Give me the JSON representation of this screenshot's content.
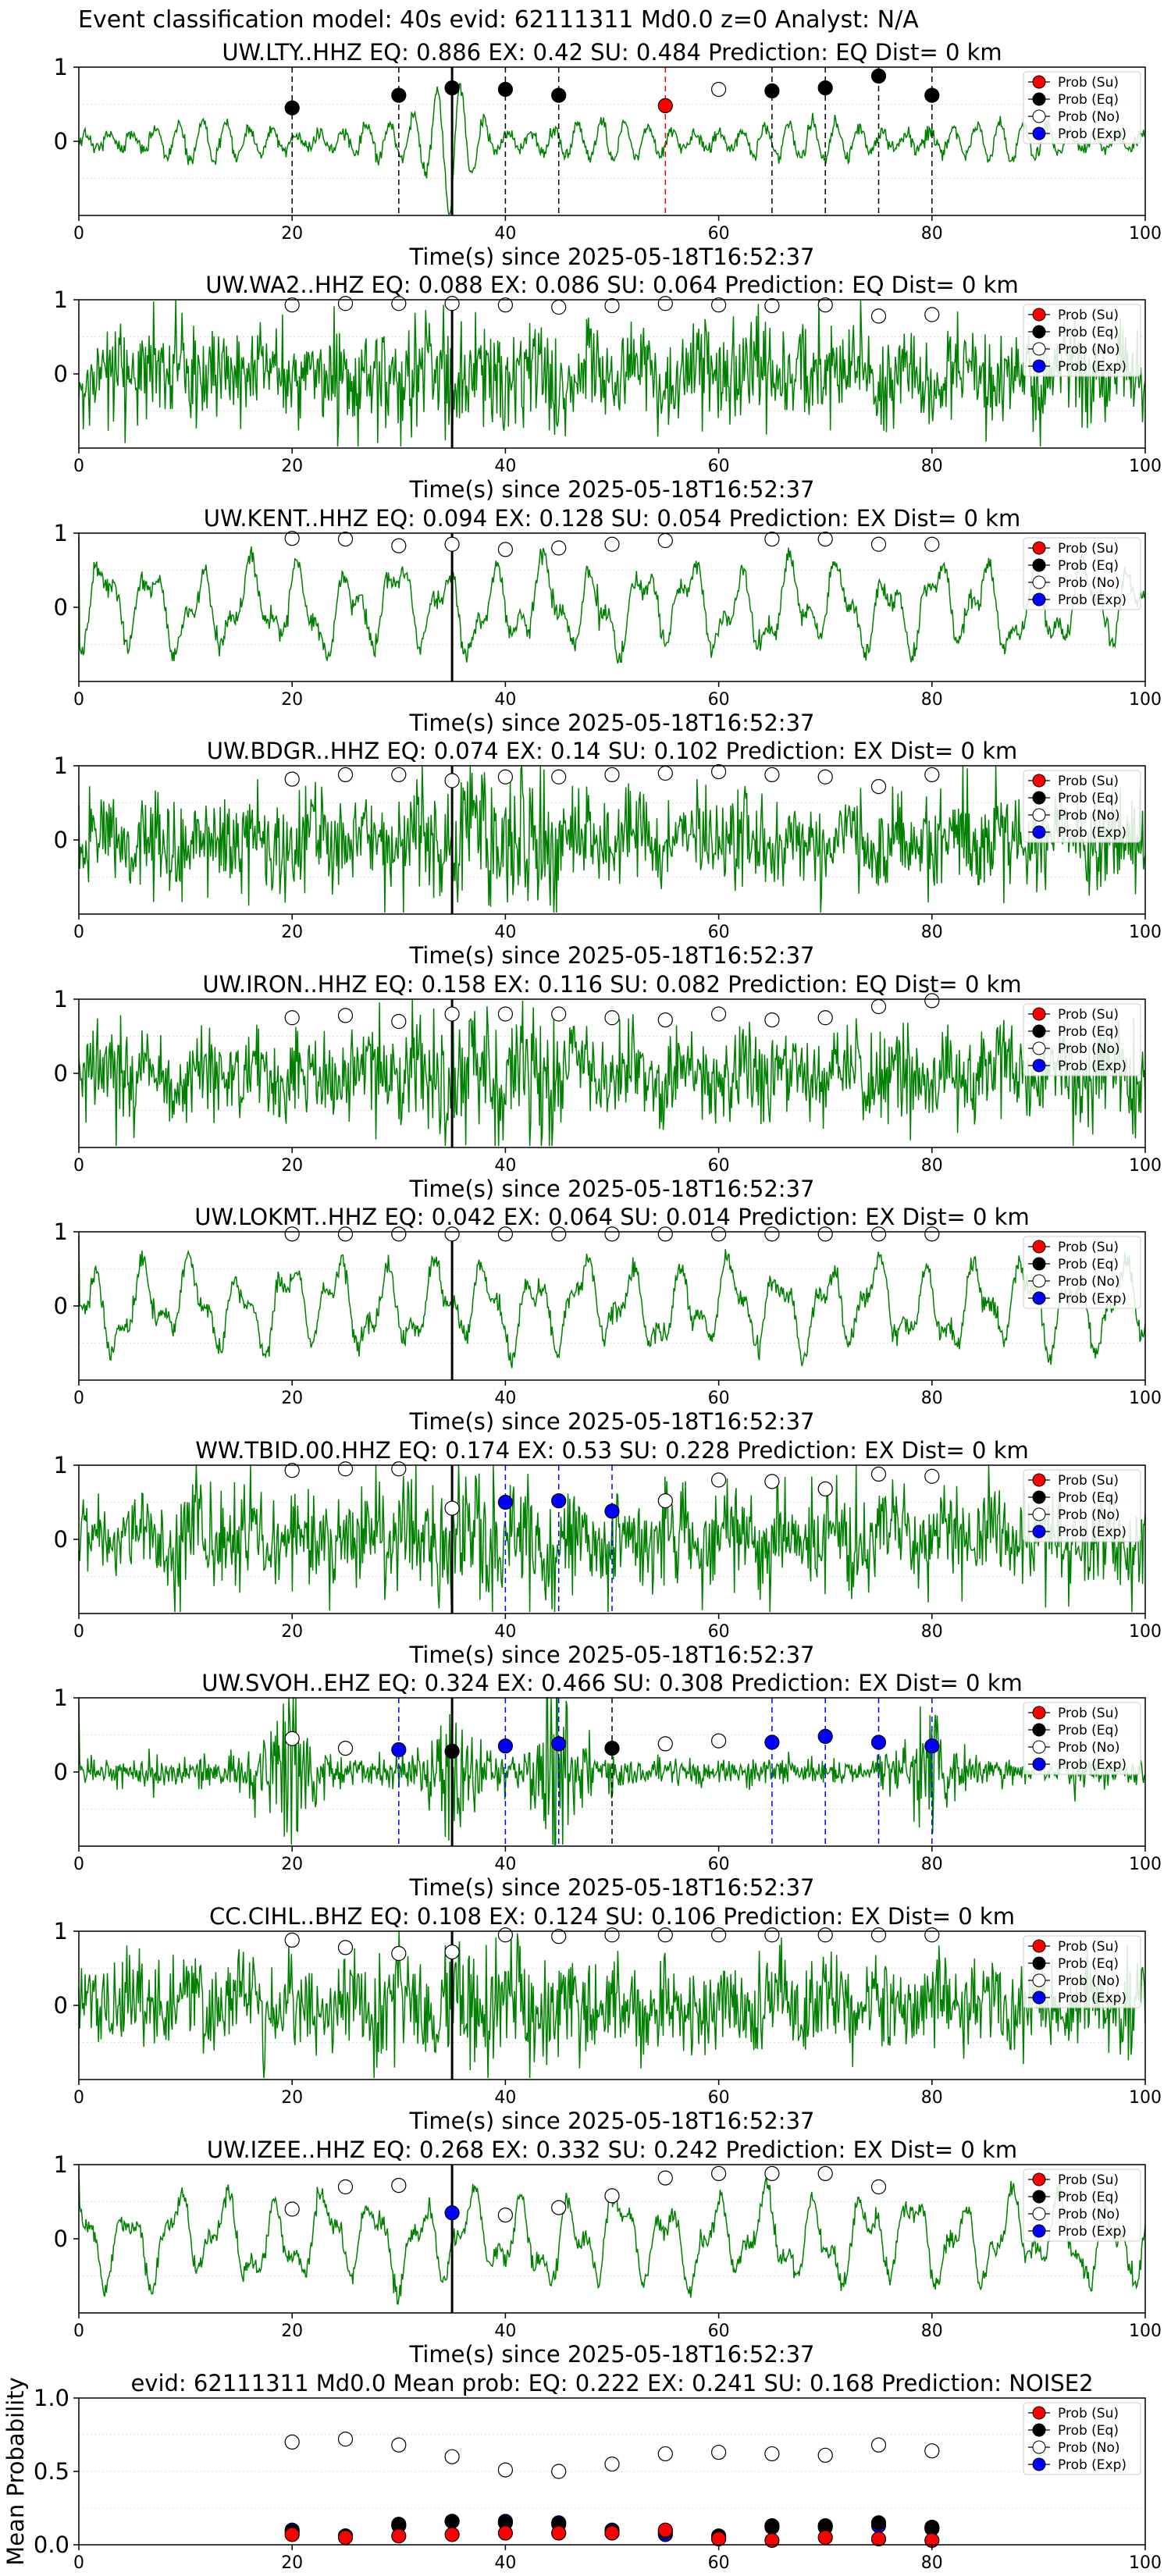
{
  "figure": {
    "title": "Event classification model: 40s evid: 62111311 Md0.0 z=0 Analyst: N/A"
  },
  "legend_labels": [
    "Prob (Su)",
    "Prob (Eq)",
    "Prob (No)",
    "Prob (Exp)"
  ],
  "colors": {
    "waveform": "#008000",
    "su": "#ff0000",
    "eq": "#000000",
    "no": "#ffffff",
    "exp": "#0000ff",
    "reference_line": "#000000"
  },
  "chart_data": [
    {
      "type": "line",
      "title": "UW.LTY..HHZ   EQ: 0.886  EX: 0.42  SU: 0.484   Prediction: EQ    Dist= 0 km",
      "xlabel": "Time(s) since 2025-05-18T16:52:37",
      "xlim": [
        0,
        100
      ],
      "ylim": [
        -1,
        1
      ],
      "x_ticks": [
        0,
        20,
        40,
        60,
        80,
        100
      ],
      "y_ticks": [
        0,
        1
      ],
      "grid": true,
      "legend": "right",
      "reference_line_x": 35,
      "waveform_character": "impulsive",
      "points": {
        "su": [
          [
            55,
            0.48
          ]
        ],
        "eq": [
          [
            20,
            0.45
          ],
          [
            30,
            0.62
          ],
          [
            35,
            0.72
          ],
          [
            40,
            0.7
          ],
          [
            45,
            0.62
          ],
          [
            65,
            0.68
          ],
          [
            70,
            0.72
          ],
          [
            75,
            0.88
          ],
          [
            80,
            0.62
          ]
        ],
        "no": [
          [
            60,
            0.7
          ]
        ],
        "exp": []
      },
      "dashed_lines": [
        {
          "x": 20,
          "color": "eq"
        },
        {
          "x": 30,
          "color": "eq"
        },
        {
          "x": 35,
          "color": "eq"
        },
        {
          "x": 40,
          "color": "eq"
        },
        {
          "x": 45,
          "color": "eq"
        },
        {
          "x": 55,
          "color": "su"
        },
        {
          "x": 65,
          "color": "eq"
        },
        {
          "x": 70,
          "color": "eq"
        },
        {
          "x": 75,
          "color": "eq"
        },
        {
          "x": 80,
          "color": "eq"
        }
      ]
    },
    {
      "type": "line",
      "title": "UW.WA2..HHZ   EQ: 0.088  EX: 0.086  SU: 0.064   Prediction: EQ    Dist= 0 km",
      "xlabel": "Time(s) since 2025-05-18T16:52:37",
      "xlim": [
        0,
        100
      ],
      "ylim": [
        -1,
        1
      ],
      "x_ticks": [
        0,
        20,
        40,
        60,
        80,
        100
      ],
      "y_ticks": [
        0,
        1
      ],
      "grid": true,
      "legend": "right",
      "reference_line_x": 35,
      "waveform_character": "dense",
      "points": {
        "su": [],
        "eq": [],
        "no": [
          [
            20,
            0.93
          ],
          [
            25,
            0.95
          ],
          [
            30,
            0.95
          ],
          [
            35,
            0.95
          ],
          [
            40,
            0.93
          ],
          [
            45,
            0.9
          ],
          [
            50,
            0.92
          ],
          [
            55,
            0.95
          ],
          [
            60,
            0.93
          ],
          [
            65,
            0.92
          ],
          [
            70,
            0.93
          ],
          [
            75,
            0.78
          ],
          [
            80,
            0.8
          ]
        ],
        "exp": []
      },
      "dashed_lines": []
    },
    {
      "type": "line",
      "title": "UW.KENT..HHZ   EQ: 0.094  EX: 0.128  SU: 0.054   Prediction: EX    Dist= 0 km",
      "xlabel": "Time(s) since 2025-05-18T16:52:37",
      "xlim": [
        0,
        100
      ],
      "ylim": [
        -1,
        1
      ],
      "x_ticks": [
        0,
        20,
        40,
        60,
        80,
        100
      ],
      "y_ticks": [
        0,
        1
      ],
      "grid": true,
      "legend": "right",
      "reference_line_x": 35,
      "waveform_character": "oscillatory",
      "points": {
        "su": [],
        "eq": [],
        "no": [
          [
            20,
            0.93
          ],
          [
            25,
            0.92
          ],
          [
            30,
            0.83
          ],
          [
            35,
            0.85
          ],
          [
            40,
            0.78
          ],
          [
            45,
            0.8
          ],
          [
            50,
            0.85
          ],
          [
            55,
            0.9
          ],
          [
            65,
            0.92
          ],
          [
            70,
            0.92
          ],
          [
            75,
            0.85
          ],
          [
            80,
            0.85
          ]
        ],
        "exp": []
      },
      "dashed_lines": []
    },
    {
      "type": "line",
      "title": "UW.BDGR..HHZ   EQ: 0.074  EX: 0.14  SU: 0.102   Prediction: EX    Dist= 0 km",
      "xlabel": "Time(s) since 2025-05-18T16:52:37",
      "xlim": [
        0,
        100
      ],
      "ylim": [
        -1,
        1
      ],
      "x_ticks": [
        0,
        20,
        40,
        60,
        80,
        100
      ],
      "y_ticks": [
        0,
        1
      ],
      "grid": true,
      "legend": "right",
      "reference_line_x": 35,
      "waveform_character": "dense",
      "points": {
        "su": [],
        "eq": [],
        "no": [
          [
            20,
            0.82
          ],
          [
            25,
            0.88
          ],
          [
            30,
            0.88
          ],
          [
            35,
            0.8
          ],
          [
            40,
            0.85
          ],
          [
            45,
            0.85
          ],
          [
            50,
            0.88
          ],
          [
            55,
            0.9
          ],
          [
            60,
            0.92
          ],
          [
            65,
            0.88
          ],
          [
            70,
            0.85
          ],
          [
            75,
            0.72
          ],
          [
            80,
            0.88
          ]
        ],
        "exp": []
      },
      "dashed_lines": []
    },
    {
      "type": "line",
      "title": "UW.IRON..HHZ   EQ: 0.158  EX: 0.116  SU: 0.082   Prediction: EQ    Dist= 0 km",
      "xlabel": "Time(s) since 2025-05-18T16:52:37",
      "xlim": [
        0,
        100
      ],
      "ylim": [
        -1,
        1
      ],
      "x_ticks": [
        0,
        20,
        40,
        60,
        80,
        100
      ],
      "y_ticks": [
        0,
        1
      ],
      "grid": true,
      "legend": "right",
      "reference_line_x": 35,
      "waveform_character": "dense",
      "points": {
        "su": [],
        "eq": [],
        "no": [
          [
            20,
            0.75
          ],
          [
            25,
            0.78
          ],
          [
            30,
            0.7
          ],
          [
            35,
            0.8
          ],
          [
            40,
            0.8
          ],
          [
            45,
            0.8
          ],
          [
            50,
            0.75
          ],
          [
            55,
            0.72
          ],
          [
            60,
            0.8
          ],
          [
            65,
            0.72
          ],
          [
            70,
            0.75
          ],
          [
            75,
            0.9
          ],
          [
            80,
            0.98
          ]
        ],
        "exp": []
      },
      "dashed_lines": []
    },
    {
      "type": "line",
      "title": "UW.LOKMT..HHZ   EQ: 0.042  EX: 0.064  SU: 0.014   Prediction: EX    Dist= 0 km",
      "xlabel": "Time(s) since 2025-05-18T16:52:37",
      "xlim": [
        0,
        100
      ],
      "ylim": [
        -1,
        1
      ],
      "x_ticks": [
        0,
        20,
        40,
        60,
        80,
        100
      ],
      "y_ticks": [
        0,
        1
      ],
      "grid": true,
      "legend": "right",
      "reference_line_x": 35,
      "waveform_character": "oscillatory",
      "points": {
        "su": [],
        "eq": [],
        "no": [
          [
            20,
            0.97
          ],
          [
            25,
            0.97
          ],
          [
            30,
            0.97
          ],
          [
            35,
            0.97
          ],
          [
            40,
            0.97
          ],
          [
            45,
            0.97
          ],
          [
            50,
            0.97
          ],
          [
            55,
            0.97
          ],
          [
            60,
            0.97
          ],
          [
            65,
            0.97
          ],
          [
            70,
            0.97
          ],
          [
            75,
            0.97
          ],
          [
            80,
            0.97
          ]
        ],
        "exp": []
      },
      "dashed_lines": []
    },
    {
      "type": "line",
      "title": "WW.TBID.00.HHZ   EQ: 0.174  EX: 0.53  SU: 0.228   Prediction: EX    Dist= 0 km",
      "xlabel": "Time(s) since 2025-05-18T16:52:37",
      "xlim": [
        0,
        100
      ],
      "ylim": [
        -1,
        1
      ],
      "x_ticks": [
        0,
        20,
        40,
        60,
        80,
        100
      ],
      "y_ticks": [
        0,
        1
      ],
      "grid": true,
      "legend": "right",
      "reference_line_x": 35,
      "waveform_character": "dense",
      "points": {
        "su": [],
        "eq": [],
        "no": [
          [
            20,
            0.93
          ],
          [
            25,
            0.95
          ],
          [
            30,
            0.95
          ],
          [
            35,
            0.42
          ],
          [
            55,
            0.52
          ],
          [
            60,
            0.8
          ],
          [
            65,
            0.78
          ],
          [
            70,
            0.68
          ],
          [
            75,
            0.88
          ],
          [
            80,
            0.85
          ]
        ],
        "exp": [
          [
            40,
            0.5
          ],
          [
            45,
            0.52
          ],
          [
            50,
            0.38
          ]
        ]
      },
      "dashed_lines": [
        {
          "x": 40,
          "color": "exp"
        },
        {
          "x": 45,
          "color": "exp"
        },
        {
          "x": 50,
          "color": "exp"
        }
      ]
    },
    {
      "type": "line",
      "title": "UW.SVOH..EHZ   EQ: 0.324  EX: 0.466  SU: 0.308   Prediction: EX    Dist= 0 km",
      "xlabel": "Time(s) since 2025-05-18T16:52:37",
      "xlim": [
        0,
        100
      ],
      "ylim": [
        -1,
        1
      ],
      "x_ticks": [
        0,
        20,
        40,
        60,
        80,
        100
      ],
      "y_ticks": [
        0,
        1
      ],
      "grid": true,
      "legend": "right",
      "reference_line_x": 35,
      "waveform_character": "bursty",
      "points": {
        "su": [],
        "eq": [
          [
            35,
            0.28
          ],
          [
            50,
            0.32
          ]
        ],
        "no": [
          [
            20,
            0.45
          ],
          [
            25,
            0.32
          ],
          [
            55,
            0.38
          ],
          [
            60,
            0.42
          ]
        ],
        "exp": [
          [
            30,
            0.3
          ],
          [
            40,
            0.35
          ],
          [
            45,
            0.38
          ],
          [
            65,
            0.4
          ],
          [
            70,
            0.48
          ],
          [
            75,
            0.4
          ],
          [
            80,
            0.35
          ]
        ]
      },
      "dashed_lines": [
        {
          "x": 30,
          "color": "exp"
        },
        {
          "x": 35,
          "color": "eq"
        },
        {
          "x": 40,
          "color": "exp"
        },
        {
          "x": 45,
          "color": "exp"
        },
        {
          "x": 50,
          "color": "eq"
        },
        {
          "x": 65,
          "color": "exp"
        },
        {
          "x": 70,
          "color": "exp"
        },
        {
          "x": 75,
          "color": "exp"
        },
        {
          "x": 80,
          "color": "exp"
        }
      ]
    },
    {
      "type": "line",
      "title": "CC.CIHL..BHZ   EQ: 0.108  EX: 0.124  SU: 0.106   Prediction: EX    Dist= 0 km",
      "xlabel": "Time(s) since 2025-05-18T16:52:37",
      "xlim": [
        0,
        100
      ],
      "ylim": [
        -1,
        1
      ],
      "x_ticks": [
        0,
        20,
        40,
        60,
        80,
        100
      ],
      "y_ticks": [
        0,
        1
      ],
      "grid": true,
      "legend": "right",
      "reference_line_x": 35,
      "waveform_character": "dense",
      "points": {
        "su": [],
        "eq": [],
        "no": [
          [
            20,
            0.88
          ],
          [
            25,
            0.78
          ],
          [
            30,
            0.7
          ],
          [
            35,
            0.72
          ],
          [
            40,
            0.95
          ],
          [
            45,
            0.93
          ],
          [
            50,
            0.95
          ],
          [
            55,
            0.95
          ],
          [
            60,
            0.95
          ],
          [
            65,
            0.95
          ],
          [
            70,
            0.95
          ],
          [
            75,
            0.95
          ],
          [
            80,
            0.95
          ]
        ],
        "exp": []
      },
      "dashed_lines": []
    },
    {
      "type": "line",
      "title": "UW.IZEE..HHZ   EQ: 0.268  EX: 0.332  SU: 0.242   Prediction: EX    Dist= 0 km",
      "xlabel": "Time(s) since 2025-05-18T16:52:37",
      "xlim": [
        0,
        100
      ],
      "ylim": [
        -1,
        1
      ],
      "x_ticks": [
        0,
        20,
        40,
        60,
        80,
        100
      ],
      "y_ticks": [
        0,
        1
      ],
      "grid": true,
      "legend": "right",
      "reference_line_x": 35,
      "waveform_character": "oscillatory",
      "points": {
        "su": [],
        "eq": [],
        "no": [
          [
            20,
            0.4
          ],
          [
            25,
            0.7
          ],
          [
            30,
            0.72
          ],
          [
            40,
            0.32
          ],
          [
            45,
            0.42
          ],
          [
            50,
            0.58
          ],
          [
            55,
            0.82
          ],
          [
            60,
            0.88
          ],
          [
            65,
            0.88
          ],
          [
            70,
            0.88
          ],
          [
            75,
            0.7
          ]
        ],
        "exp": [
          [
            35,
            0.35
          ]
        ]
      },
      "dashed_lines": []
    },
    {
      "type": "scatter",
      "title": "evid: 62111311  Md0.0   Mean prob:   EQ: 0.222  EX: 0.241  SU: 0.168   Prediction: NOISE2",
      "xlabel": "",
      "ylabel": "Mean Probability",
      "xlim": [
        0,
        100
      ],
      "ylim": [
        0,
        1
      ],
      "x_ticks": [
        0,
        20,
        40,
        60,
        80,
        100
      ],
      "y_ticks": [
        0.0,
        0.5,
        1.0
      ],
      "grid": true,
      "legend": "top-right",
      "points": {
        "no": [
          [
            20,
            0.7
          ],
          [
            25,
            0.72
          ],
          [
            30,
            0.68
          ],
          [
            35,
            0.6
          ],
          [
            40,
            0.51
          ],
          [
            45,
            0.5
          ],
          [
            50,
            0.55
          ],
          [
            55,
            0.62
          ],
          [
            60,
            0.63
          ],
          [
            65,
            0.62
          ],
          [
            70,
            0.61
          ],
          [
            75,
            0.68
          ],
          [
            80,
            0.64
          ]
        ],
        "exp": [
          [
            20,
            0.1
          ],
          [
            25,
            0.06
          ],
          [
            30,
            0.13
          ],
          [
            35,
            0.16
          ],
          [
            40,
            0.16
          ],
          [
            45,
            0.15
          ],
          [
            50,
            0.1
          ],
          [
            55,
            0.07
          ],
          [
            60,
            0.05
          ],
          [
            65,
            0.12
          ],
          [
            70,
            0.12
          ],
          [
            75,
            0.13
          ],
          [
            80,
            0.11
          ]
        ],
        "eq": [
          [
            20,
            0.09
          ],
          [
            25,
            0.06
          ],
          [
            30,
            0.14
          ],
          [
            35,
            0.16
          ],
          [
            40,
            0.15
          ],
          [
            45,
            0.14
          ],
          [
            50,
            0.09
          ],
          [
            55,
            0.09
          ],
          [
            60,
            0.06
          ],
          [
            65,
            0.13
          ],
          [
            70,
            0.13
          ],
          [
            75,
            0.15
          ],
          [
            80,
            0.12
          ]
        ],
        "su": [
          [
            20,
            0.07
          ],
          [
            25,
            0.05
          ],
          [
            30,
            0.06
          ],
          [
            35,
            0.07
          ],
          [
            40,
            0.08
          ],
          [
            45,
            0.08
          ],
          [
            50,
            0.08
          ],
          [
            55,
            0.1
          ],
          [
            60,
            0.04
          ],
          [
            65,
            0.03
          ],
          [
            70,
            0.05
          ],
          [
            75,
            0.04
          ],
          [
            80,
            0.03
          ]
        ]
      }
    }
  ]
}
